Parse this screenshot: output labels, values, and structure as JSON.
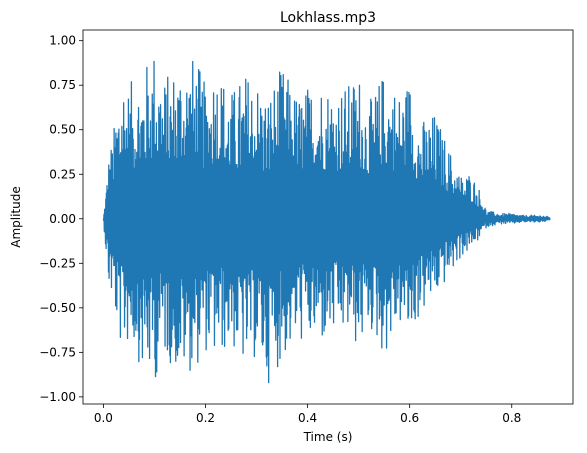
{
  "chart_data": {
    "type": "line",
    "title": "Lokhlass.mp3",
    "xlabel": "Time (s)",
    "ylabel": "Amplitude",
    "xlim": [
      -0.04,
      0.92
    ],
    "ylim": [
      -1.04,
      1.06
    ],
    "x_ticks": [
      0.0,
      0.2,
      0.4,
      0.6,
      0.8
    ],
    "x_tick_labels": [
      "0.0",
      "0.2",
      "0.4",
      "0.6",
      "0.8"
    ],
    "y_ticks": [
      -1.0,
      -0.75,
      -0.5,
      -0.25,
      0.0,
      0.25,
      0.5,
      0.75,
      1.0
    ],
    "y_tick_labels": [
      "−1.00",
      "−0.75",
      "−0.50",
      "−0.25",
      "0.00",
      "0.25",
      "0.50",
      "0.75",
      "1.00"
    ],
    "grid": false,
    "legend": false,
    "color": "#1f77b4",
    "series": [
      {
        "x": [
          0.0,
          0.01,
          0.02,
          0.03,
          0.04,
          0.05,
          0.06,
          0.08,
          0.1,
          0.12,
          0.15,
          0.18,
          0.2,
          0.22,
          0.25,
          0.28,
          0.3,
          0.32,
          0.35,
          0.38,
          0.4,
          0.42,
          0.45,
          0.48,
          0.5,
          0.52,
          0.55,
          0.58,
          0.6,
          0.62,
          0.65,
          0.68,
          0.7,
          0.72,
          0.74,
          0.75,
          0.76,
          0.78,
          0.8,
          0.82,
          0.84,
          0.86,
          0.875
        ],
        "max": [
          0.0,
          0.35,
          0.5,
          0.75,
          0.85,
          0.75,
          0.8,
          0.85,
          0.98,
          0.8,
          0.9,
          0.92,
          0.75,
          0.9,
          0.72,
          0.83,
          0.8,
          0.7,
          0.86,
          0.7,
          0.75,
          0.8,
          0.75,
          0.76,
          0.84,
          0.65,
          0.84,
          0.72,
          0.8,
          0.55,
          0.6,
          0.38,
          0.25,
          0.27,
          0.15,
          0.05,
          0.04,
          0.03,
          0.03,
          0.02,
          0.02,
          0.02,
          0.01
        ],
        "min": [
          0.0,
          -0.4,
          -0.5,
          -0.7,
          -0.75,
          -0.7,
          -0.72,
          -0.9,
          -0.92,
          -0.78,
          -0.88,
          -0.85,
          -0.75,
          -0.8,
          -0.72,
          -0.86,
          -0.78,
          -0.94,
          -0.8,
          -0.7,
          -0.7,
          -0.72,
          -0.68,
          -0.66,
          -0.75,
          -0.62,
          -0.78,
          -0.6,
          -0.7,
          -0.55,
          -0.45,
          -0.32,
          -0.22,
          -0.18,
          -0.1,
          -0.05,
          -0.04,
          -0.03,
          -0.03,
          -0.02,
          -0.02,
          -0.02,
          -0.01
        ]
      }
    ]
  }
}
